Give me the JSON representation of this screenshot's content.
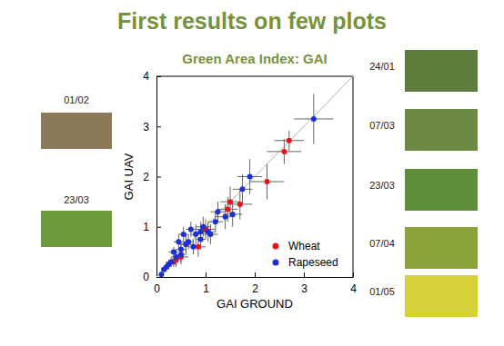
{
  "slide": {
    "title": "First results on few plots",
    "photos_left": [
      "01/02",
      "23/03"
    ],
    "photos_right": [
      "24/01",
      "07/03",
      "23/03",
      "07/04",
      "01/05"
    ]
  },
  "chart_data": {
    "type": "scatter",
    "title": "Green Area Index: GAI",
    "x_label": "GAI GROUND",
    "y_label": "GAI UAV",
    "xlim": [
      0,
      4
    ],
    "ylim": [
      0,
      4
    ],
    "xticks": [
      0,
      1,
      2,
      3,
      4
    ],
    "yticks": [
      0,
      1,
      2,
      3,
      4
    ],
    "grid": false,
    "legend": "lower right",
    "marker": "circle",
    "series": [
      {
        "name": "Wheat",
        "color": "#e8141c",
        "x": [
          2.7,
          2.6,
          2.25,
          1.7,
          1.5,
          1.45,
          1.0,
          0.85,
          0.6,
          0.5,
          0.4,
          0.35
        ],
        "values": [
          2.72,
          2.5,
          1.9,
          1.45,
          1.5,
          1.35,
          0.95,
          0.6,
          0.65,
          0.4,
          0.35,
          0.3
        ],
        "x_error": [
          0.3,
          0.35,
          0.35,
          0.25,
          0.2,
          0.2,
          0.2,
          0.15,
          0.15,
          0.15,
          0.1,
          0.1
        ],
        "y_error": [
          0.2,
          0.25,
          0.35,
          0.3,
          0.3,
          0.25,
          0.2,
          0.2,
          0.2,
          0.15,
          0.15,
          0.1
        ]
      },
      {
        "name": "Rapeseed",
        "color": "#1a2fd6",
        "x": [
          3.2,
          1.9,
          1.75,
          1.55,
          1.4,
          1.25,
          1.2,
          1.1,
          1.05,
          0.95,
          0.9,
          0.9,
          0.8,
          0.75,
          0.7,
          0.65,
          0.6,
          0.55,
          0.5,
          0.5,
          0.45,
          0.4,
          0.35,
          0.3,
          0.25,
          0.2,
          0.15,
          0.1
        ],
        "values": [
          3.15,
          2.0,
          1.75,
          1.25,
          1.2,
          1.3,
          1.1,
          0.85,
          0.9,
          1.0,
          0.9,
          0.75,
          0.85,
          0.6,
          0.95,
          0.7,
          0.65,
          0.85,
          0.55,
          0.45,
          0.7,
          0.4,
          0.5,
          0.3,
          0.25,
          0.2,
          0.15,
          0.05
        ],
        "x_error": [
          0.4,
          0.25,
          0.2,
          0.2,
          0.2,
          0.15,
          0.15,
          0.15,
          0.15,
          0.15,
          0.15,
          0.1,
          0.1,
          0.1,
          0.1,
          0.1,
          0.1,
          0.1,
          0.1,
          0.1,
          0.1,
          0.1,
          0.1,
          0.1,
          0.05,
          0.05,
          0.05,
          0.05
        ],
        "y_error": [
          0.5,
          0.35,
          0.3,
          0.25,
          0.25,
          0.2,
          0.2,
          0.2,
          0.2,
          0.2,
          0.2,
          0.2,
          0.2,
          0.15,
          0.15,
          0.15,
          0.15,
          0.15,
          0.15,
          0.15,
          0.15,
          0.15,
          0.1,
          0.1,
          0.1,
          0.1,
          0.05,
          0.05
        ]
      }
    ]
  }
}
